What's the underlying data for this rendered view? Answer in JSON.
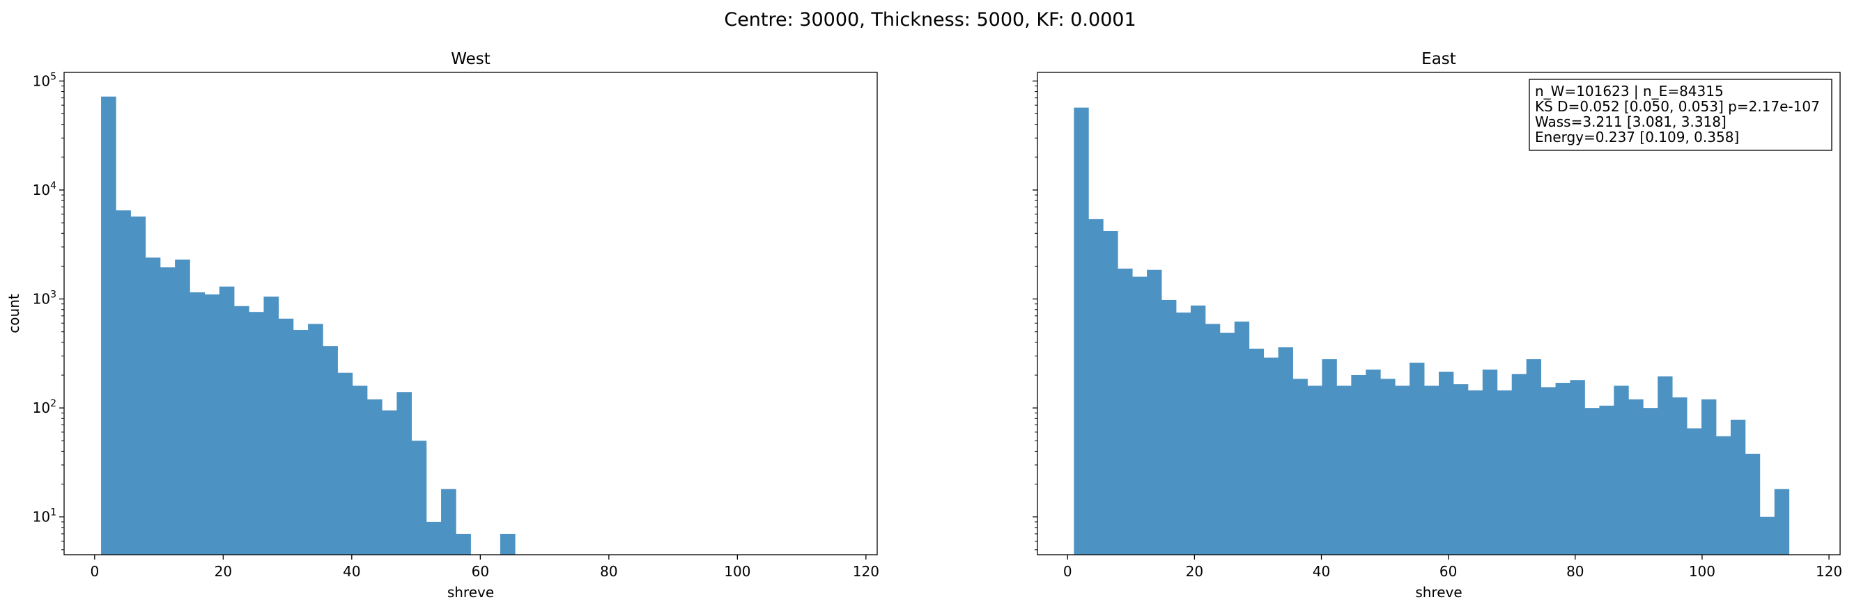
{
  "figure": {
    "suptitle": "Centre: 30000, Thickness: 5000, KF: 0.0001"
  },
  "colors": {
    "bar": "#4c92c3",
    "axis": "#000000",
    "background": "#ffffff"
  },
  "chart_data": [
    {
      "type": "bar",
      "title": "West",
      "xlabel": "shreve",
      "ylabel": "count",
      "yscale": "log",
      "xlim": [
        -4.75,
        121.75
      ],
      "ylim": [
        4.5,
        120000
      ],
      "xticks": [
        0,
        20,
        40,
        60,
        80,
        100,
        120
      ],
      "yticks": [
        {
          "value": 10,
          "base": "10",
          "exp": "1"
        },
        {
          "value": 100,
          "base": "10",
          "exp": "2"
        },
        {
          "value": 1000,
          "base": "10",
          "exp": "3"
        },
        {
          "value": 10000,
          "base": "10",
          "exp": "4"
        },
        {
          "value": 100000,
          "base": "10",
          "exp": "5"
        }
      ],
      "bins_start": 1,
      "bin_width": 2.3,
      "counts": [
        72000,
        6500,
        5700,
        2400,
        1950,
        2300,
        1150,
        1100,
        1300,
        860,
        760,
        1050,
        660,
        520,
        590,
        370,
        210,
        160,
        120,
        95,
        140,
        50,
        9,
        18,
        7,
        0,
        0,
        7
      ],
      "grid": false,
      "legend": "none"
    },
    {
      "type": "bar",
      "title": "East",
      "xlabel": "shreve",
      "ylabel": "",
      "yscale": "log",
      "xlim": [
        -4.75,
        121.75
      ],
      "ylim": [
        4.5,
        120000
      ],
      "xticks": [
        0,
        20,
        40,
        60,
        80,
        100,
        120
      ],
      "bins_start": 1,
      "bin_width": 2.3,
      "counts": [
        57000,
        5400,
        4200,
        1900,
        1600,
        1850,
        980,
        750,
        870,
        590,
        490,
        620,
        350,
        290,
        360,
        185,
        160,
        280,
        160,
        200,
        225,
        185,
        160,
        260,
        160,
        215,
        165,
        145,
        225,
        145,
        205,
        280,
        155,
        170,
        180,
        100,
        105,
        160,
        120,
        100,
        195,
        125,
        65,
        120,
        55,
        78,
        38,
        10,
        18
      ],
      "grid": false,
      "legend": "none",
      "annotation": {
        "lines": [
          "n_W=101623 | n_E=84315",
          "KS D=0.052 [0.050, 0.053]  p=2.17e-107",
          "Wass=3.211 [3.081, 3.318]",
          "Energy=0.237 [0.109, 0.358]"
        ],
        "position": "top-right"
      }
    }
  ]
}
